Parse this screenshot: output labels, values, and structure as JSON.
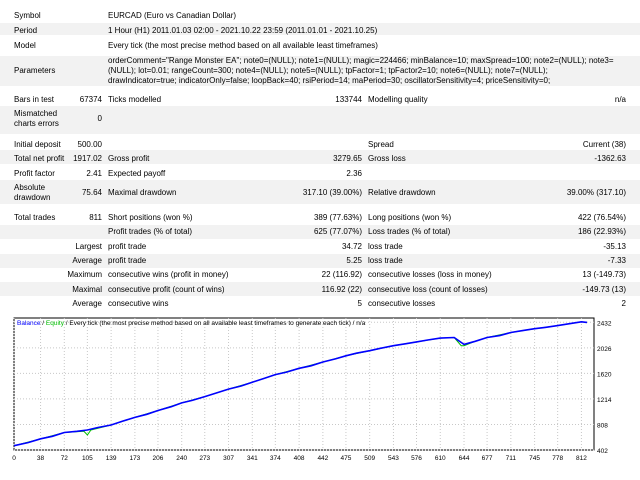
{
  "report": {
    "symbol_label": "Symbol",
    "symbol_value": "EURCAD (Euro vs Canadian Dollar)",
    "period_label": "Period",
    "period_value": "1 Hour (H1) 2011.01.03 02:00 - 2021.10.22 23:59 (2011.01.01 - 2021.10.25)",
    "model_label": "Model",
    "model_value": "Every tick (the most precise method based on all available least timeframes)",
    "parameters_label": "Parameters",
    "parameters_lines": [
      "orderComment=\"Range Monster EA\"; note0=(NULL); note1=(NULL); magic=224466; minBalance=10; maxSpread=100; note2=(NULL); note3=",
      "(NULL); lot=0.01; rangeCount=300; note4=(NULL); note5=(NULL); tpFactor=1; tpFactor2=10; note6=(NULL); note7=(NULL);",
      "drawIndicator=true; indicatorOnly=false; loopBack=40; rsiPeriod=14; maPeriod=30; oscillatorSensitivity=4; priceSensitivity=0;"
    ],
    "bars_label": "Bars in test",
    "bars_value": "67374",
    "ticks_label": "Ticks modelled",
    "ticks_value": "133744",
    "quality_label": "Modelling quality",
    "quality_value": "n/a",
    "mismatched_label_1": "Mismatched",
    "mismatched_label_2": "charts errors",
    "mismatched_value": "0",
    "initial_deposit_label": "Initial deposit",
    "initial_deposit_value": "500.00",
    "spread_label": "Spread",
    "spread_value": "Current (38)",
    "net_profit_label": "Total net profit",
    "net_profit_value": "1917.02",
    "gross_profit_label": "Gross profit",
    "gross_profit_value": "3279.65",
    "gross_loss_label": "Gross loss",
    "gross_loss_value": "-1362.63",
    "profit_factor_label": "Profit factor",
    "profit_factor_value": "2.41",
    "expected_payoff_label": "Expected payoff",
    "expected_payoff_value": "2.36",
    "abs_drawdown_label_1": "Absolute",
    "abs_drawdown_label_2": "drawdown",
    "abs_drawdown_value": "75.64",
    "max_drawdown_label": "Maximal drawdown",
    "max_drawdown_value": "317.10 (39.00%)",
    "rel_drawdown_label": "Relative drawdown",
    "rel_drawdown_value": "39.00% (317.10)",
    "total_trades_label": "Total trades",
    "total_trades_value": "811",
    "short_label": "Short positions (won %)",
    "short_value": "389 (77.63%)",
    "long_label": "Long positions (won %)",
    "long_value": "422 (76.54%)",
    "profit_trades_label": "Profit trades (% of total)",
    "profit_trades_value": "625 (77.07%)",
    "loss_trades_label": "Loss trades (% of total)",
    "loss_trades_value": "186 (22.93%)",
    "largest_label": "Largest",
    "largest_profit_label": "profit trade",
    "largest_profit_value": "34.72",
    "largest_loss_label": "loss trade",
    "largest_loss_value": "-35.13",
    "average_label": "Average",
    "average_profit_label": "profit trade",
    "average_profit_value": "5.25",
    "average_loss_label": "loss trade",
    "average_loss_value": "-7.33",
    "maximum_label": "Maximum",
    "max_cons_wins_label": "consecutive wins (profit in money)",
    "max_cons_wins_value": "22 (116.92)",
    "max_cons_losses_label": "consecutive losses (loss in money)",
    "max_cons_losses_value": "13 (-149.73)",
    "maximal_label": "Maximal",
    "maximal_cons_profit_label": "consecutive profit (count of wins)",
    "maximal_cons_profit_value": "116.92 (22)",
    "maximal_cons_loss_label": "consecutive loss (count of losses)",
    "maximal_cons_loss_value": "-149.73 (13)",
    "average2_label": "Average",
    "avg_cons_wins_label": "consecutive wins",
    "avg_cons_wins_value": "5",
    "avg_cons_losses_label": "consecutive losses",
    "avg_cons_losses_value": "2"
  },
  "chart": {
    "legend_balance": "Balance",
    "legend_sep": " / ",
    "legend_equity": "Equity",
    "legend_rest": " / Every tick (the most precise method based on all available least timeframes to generate each tick) / n/a",
    "balance_color": "#0000ff",
    "equity_color": "#00c000"
  },
  "chart_data": {
    "type": "line",
    "x_ticks": [
      "0",
      "38",
      "72",
      "105",
      "139",
      "173",
      "206",
      "240",
      "273",
      "307",
      "341",
      "374",
      "408",
      "442",
      "475",
      "509",
      "543",
      "576",
      "610",
      "644",
      "677",
      "711",
      "745",
      "778",
      "812"
    ],
    "y_ticks": [
      "2432",
      "2026",
      "1620",
      "1214",
      "808",
      "402"
    ],
    "ylim": [
      402,
      2500
    ],
    "xlim": [
      0,
      830
    ],
    "series": [
      {
        "name": "Balance",
        "x": [
          0,
          20,
          38,
          55,
          72,
          90,
          105,
          120,
          139,
          155,
          173,
          190,
          206,
          225,
          240,
          255,
          273,
          290,
          307,
          325,
          341,
          358,
          374,
          390,
          408,
          425,
          442,
          460,
          475,
          490,
          509,
          525,
          543,
          560,
          576,
          592,
          610,
          630,
          644,
          660,
          677,
          695,
          711,
          728,
          745,
          760,
          778,
          795,
          812,
          820
        ],
        "y": [
          470,
          520,
          580,
          620,
          680,
          700,
          720,
          760,
          800,
          860,
          920,
          970,
          1030,
          1090,
          1150,
          1190,
          1250,
          1310,
          1370,
          1420,
          1480,
          1540,
          1600,
          1640,
          1700,
          1740,
          1800,
          1850,
          1900,
          1940,
          1980,
          2020,
          2060,
          2090,
          2120,
          2150,
          2180,
          2190,
          2080,
          2130,
          2190,
          2220,
          2270,
          2300,
          2330,
          2350,
          2380,
          2410,
          2440,
          2430
        ]
      },
      {
        "name": "Equity",
        "x": [
          0,
          38,
          72,
          100,
          105,
          110,
          139,
          173,
          206,
          240,
          273,
          307,
          341,
          374,
          408,
          442,
          475,
          509,
          543,
          576,
          610,
          630,
          640,
          644,
          660,
          677,
          711,
          745,
          778,
          812,
          820
        ],
        "y": [
          470,
          580,
          680,
          700,
          640,
          720,
          800,
          920,
          1030,
          1150,
          1250,
          1370,
          1480,
          1600,
          1700,
          1800,
          1900,
          1980,
          2060,
          2120,
          2180,
          2190,
          2060,
          2060,
          2130,
          2190,
          2270,
          2330,
          2380,
          2440,
          2430
        ]
      }
    ]
  }
}
